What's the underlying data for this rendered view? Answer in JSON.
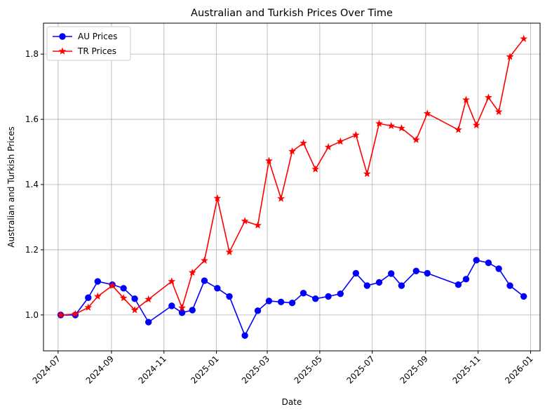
{
  "chart_data": {
    "type": "line",
    "title": "Australian and Turkish Prices Over Time",
    "xlabel": "Date",
    "ylabel": "Australian and Turkish Prices",
    "xlim": [
      "2024-06-14",
      "2026-01-12"
    ],
    "ylim": [
      0.89,
      1.895
    ],
    "xticks": [
      "2024-07-01",
      "2024-09-01",
      "2024-11-01",
      "2025-01-01",
      "2025-03-01",
      "2025-05-01",
      "2025-07-01",
      "2025-09-01",
      "2025-11-01",
      "2026-01-01"
    ],
    "xtick_labels": [
      "2024-07",
      "2024-09",
      "2024-11",
      "2025-01",
      "2025-03",
      "2025-05",
      "2025-07",
      "2025-09",
      "2025-11",
      "2026-01"
    ],
    "yticks": [
      1.0,
      1.2,
      1.4,
      1.6,
      1.8
    ],
    "ytick_labels": [
      "1.0",
      "1.2",
      "1.4",
      "1.6",
      "1.8"
    ],
    "grid": true,
    "legend_position": "top-left",
    "series": [
      {
        "name": "AU Prices",
        "color": "#0000ff",
        "marker": "circle",
        "x": [
          "2024-07-04",
          "2024-07-21",
          "2024-08-05",
          "2024-08-16",
          "2024-09-02",
          "2024-09-15",
          "2024-09-28",
          "2024-10-14",
          "2024-11-10",
          "2024-11-22",
          "2024-12-04",
          "2024-12-18",
          "2025-01-02",
          "2025-01-16",
          "2025-02-03",
          "2025-02-18",
          "2025-03-03",
          "2025-03-17",
          "2025-03-30",
          "2025-04-12",
          "2025-04-26",
          "2025-05-11",
          "2025-05-25",
          "2025-06-12",
          "2025-06-25",
          "2025-07-09",
          "2025-07-23",
          "2025-08-04",
          "2025-08-21",
          "2025-09-03",
          "2025-10-09",
          "2025-10-18",
          "2025-10-30",
          "2025-11-13",
          "2025-11-25",
          "2025-12-08",
          "2025-12-24"
        ],
        "y": [
          1.0,
          1.0,
          1.053,
          1.103,
          1.093,
          1.082,
          1.05,
          0.978,
          1.028,
          1.007,
          1.015,
          1.105,
          1.082,
          1.057,
          0.937,
          1.013,
          1.043,
          1.04,
          1.037,
          1.067,
          1.05,
          1.057,
          1.065,
          1.128,
          1.09,
          1.1,
          1.127,
          1.09,
          1.135,
          1.128,
          1.093,
          1.11,
          1.168,
          1.16,
          1.142,
          1.09,
          1.057
        ]
      },
      {
        "name": "TR Prices",
        "color": "#ff0000",
        "marker": "star",
        "x": [
          "2024-07-04",
          "2024-07-21",
          "2024-08-05",
          "2024-08-16",
          "2024-09-02",
          "2024-09-15",
          "2024-09-28",
          "2024-10-14",
          "2024-11-10",
          "2024-11-22",
          "2024-12-04",
          "2024-12-18",
          "2025-01-02",
          "2025-01-16",
          "2025-02-03",
          "2025-02-18",
          "2025-03-03",
          "2025-03-17",
          "2025-03-30",
          "2025-04-12",
          "2025-04-26",
          "2025-05-11",
          "2025-05-25",
          "2025-06-12",
          "2025-06-25",
          "2025-07-09",
          "2025-07-23",
          "2025-08-04",
          "2025-08-21",
          "2025-09-03",
          "2025-10-09",
          "2025-10-18",
          "2025-10-30",
          "2025-11-13",
          "2025-11-25",
          "2025-12-08",
          "2025-12-24"
        ],
        "y": [
          1.0,
          1.003,
          1.023,
          1.057,
          1.09,
          1.052,
          1.015,
          1.048,
          1.103,
          1.022,
          1.13,
          1.167,
          1.358,
          1.193,
          1.288,
          1.275,
          1.473,
          1.357,
          1.502,
          1.527,
          1.447,
          1.515,
          1.532,
          1.552,
          1.433,
          1.587,
          1.58,
          1.573,
          1.537,
          1.618,
          1.568,
          1.66,
          1.582,
          1.667,
          1.623,
          1.792,
          1.847
        ]
      }
    ]
  }
}
